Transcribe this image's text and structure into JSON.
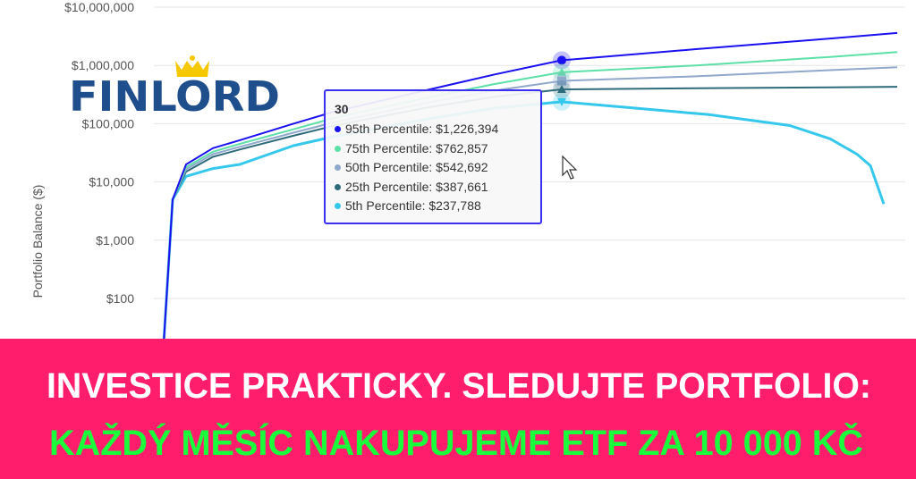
{
  "logo": {
    "text": "FINLORD",
    "crown_color": "#F5C800",
    "text_color": "#1F4E8C"
  },
  "chart_data": {
    "type": "line",
    "ylabel": "Portfolio Balance ($)",
    "yscale": "log",
    "ylim": [
      10,
      10000000
    ],
    "xlim": [
      0,
      56
    ],
    "yticks": [
      100,
      1000,
      10000,
      100000,
      1000000,
      10000000
    ],
    "ytick_labels": [
      "$100",
      "$1,000",
      "$10,000",
      "$100,000",
      "$1,000,000",
      "$10,000,000"
    ],
    "grid": true,
    "series": [
      {
        "name": "95th Percentile",
        "color": "#1A10F0",
        "x": [
          0,
          1,
          2,
          4,
          6,
          10,
          13,
          20,
          25,
          30,
          40,
          50,
          55
        ],
        "values": [
          1,
          5000,
          20000,
          38000,
          52000,
          100000,
          160000,
          380000,
          700000,
          1226394,
          1900000,
          2900000,
          3600000
        ]
      },
      {
        "name": "75th Percentile",
        "color": "#5DE0A8",
        "x": [
          0,
          1,
          2,
          4,
          6,
          10,
          13,
          20,
          25,
          30,
          40,
          50,
          55
        ],
        "values": [
          1,
          5000,
          18000,
          33000,
          45000,
          80000,
          125000,
          280000,
          480000,
          762857,
          1000000,
          1400000,
          1700000
        ]
      },
      {
        "name": "50th Percentile",
        "color": "#8FA8CC",
        "x": [
          0,
          1,
          2,
          4,
          6,
          10,
          13,
          20,
          25,
          30,
          40,
          50,
          55
        ],
        "values": [
          1,
          5000,
          16500,
          30000,
          40000,
          70000,
          105000,
          230000,
          370000,
          542692,
          650000,
          830000,
          930000
        ]
      },
      {
        "name": "25th Percentile",
        "color": "#2E6B7A",
        "x": [
          0,
          1,
          2,
          4,
          6,
          10,
          13,
          20,
          25,
          30,
          40,
          50,
          55
        ],
        "values": [
          1,
          5000,
          15000,
          27000,
          36000,
          62000,
          92000,
          190000,
          290000,
          387661,
          405000,
          420000,
          430000
        ]
      },
      {
        "name": "5th Percentile",
        "color": "#35C8EC",
        "x": [
          0,
          1,
          2,
          4,
          6,
          10,
          13,
          20,
          25,
          30,
          35,
          41,
          47,
          50,
          52,
          53,
          54
        ],
        "values": [
          1,
          5000,
          12500,
          17000,
          20000,
          42000,
          60000,
          120000,
          185000,
          237788,
          189000,
          143000,
          93000,
          55000,
          30000,
          19000,
          4200
        ]
      }
    ],
    "tooltip": {
      "title": "30",
      "rows": [
        {
          "label": "95th Percentile: $1,226,394",
          "color": "#1A10F0"
        },
        {
          "label": "75th Percentile: $762,857",
          "color": "#5DE0A8"
        },
        {
          "label": "50th Percentile: $542,692",
          "color": "#8FA8CC"
        },
        {
          "label": "25th Percentile: $387,661",
          "color": "#2E6B7A"
        },
        {
          "label": "5th Percentile: $237,788",
          "color": "#35C8EC"
        }
      ]
    }
  },
  "banner": {
    "background": "#FF1D6C",
    "line1": "INVESTICE PRAKTICKY. SLEDUJTE PORTFOLIO:",
    "line1_color": "#FFFFFF",
    "line2": "KAŽDÝ MĚSÍC NAKUPUJEME ETF ZA 10 000 KČ",
    "line2_color": "#1AFF3C"
  }
}
